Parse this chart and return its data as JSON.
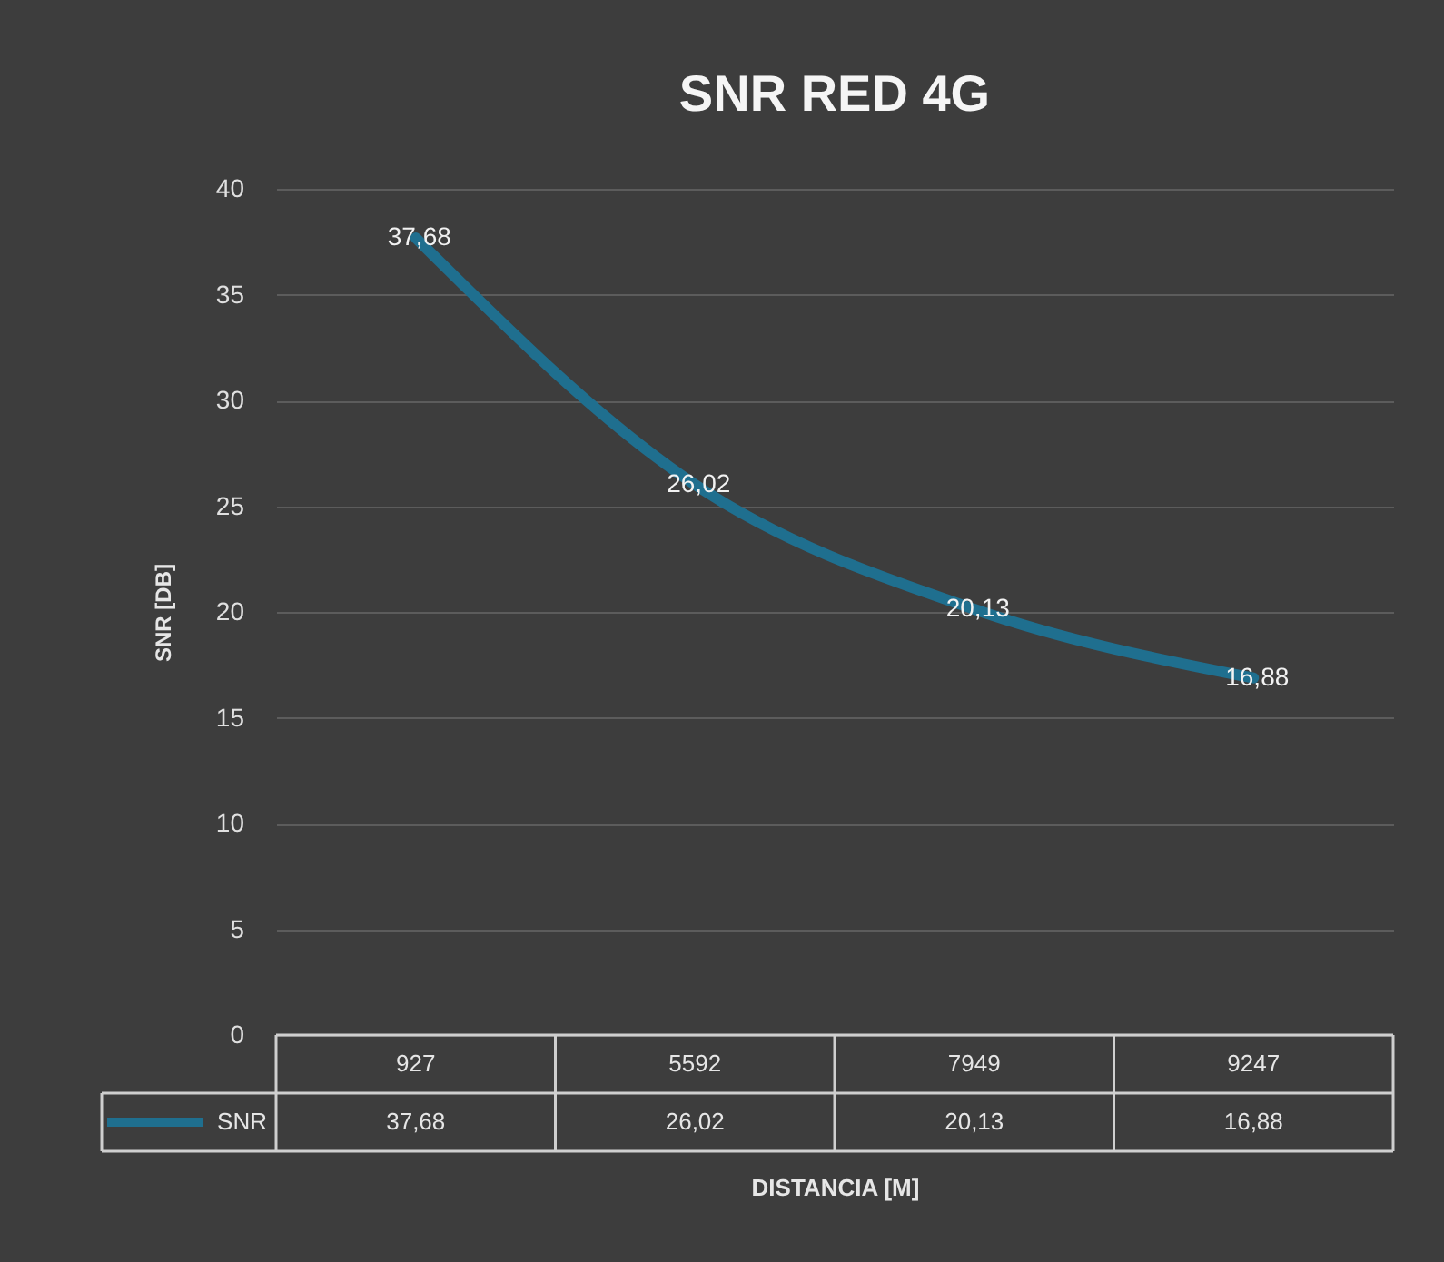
{
  "chart_data": {
    "type": "line",
    "title": "SNR RED 4G",
    "xlabel": "DISTANCIA [M]",
    "ylabel": "SNR [DB]",
    "categories": [
      "927",
      "5592",
      "7949",
      "9247"
    ],
    "series": [
      {
        "name": "SNR",
        "color": "#1f6f8f",
        "values": [
          37.68,
          26.02,
          20.13,
          16.88
        ],
        "value_labels": [
          "37,68",
          "26,02",
          "20,13",
          "16,88"
        ]
      }
    ],
    "ylim": [
      0,
      40
    ],
    "yticks": [
      0,
      5,
      10,
      15,
      20,
      25,
      30,
      35,
      40
    ],
    "grid": "y",
    "legend": "bottom",
    "line_style": "solid",
    "marker": "none"
  }
}
